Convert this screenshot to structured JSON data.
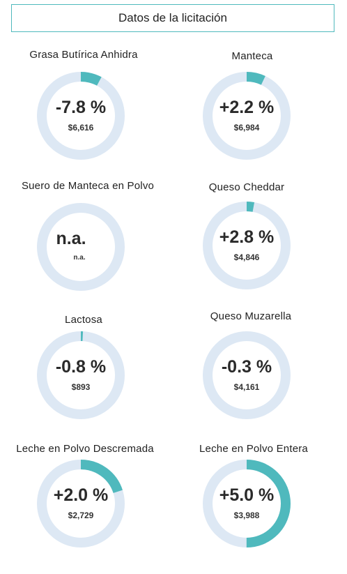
{
  "header": {
    "title": "Datos de la licitación"
  },
  "colors": {
    "track": "#dde8f4",
    "progress": "#4fb9bd"
  },
  "cards": [
    {
      "title": "Grasa Butírica Anhidra",
      "pct": "-7.8 %",
      "price": "$6,616",
      "fill": 0.078
    },
    {
      "title": "Manteca",
      "pct": "+2.2 %",
      "price": "$6,984",
      "fill": 0.07
    },
    {
      "title": "Suero de Manteca en Polvo",
      "pct": "n.a.",
      "price": "n.a.",
      "fill": 0
    },
    {
      "title": "Queso Cheddar",
      "pct": "+2.8 %",
      "price": "$4,846",
      "fill": 0.028
    },
    {
      "title": "Lactosa",
      "pct": "-0.8 %",
      "price": "$893",
      "fill": 0.008
    },
    {
      "title": "Queso Muzarella",
      "pct": "-0.3 %",
      "price": "$4,161",
      "fill": 0
    },
    {
      "title": "Leche en Polvo Descremada",
      "pct": "+2.0 %",
      "price": "$2,729",
      "fill": 0.2
    },
    {
      "title": "Leche en Polvo Entera",
      "pct": "+5.0 %",
      "price": "$3,988",
      "fill": 0.5
    }
  ]
}
